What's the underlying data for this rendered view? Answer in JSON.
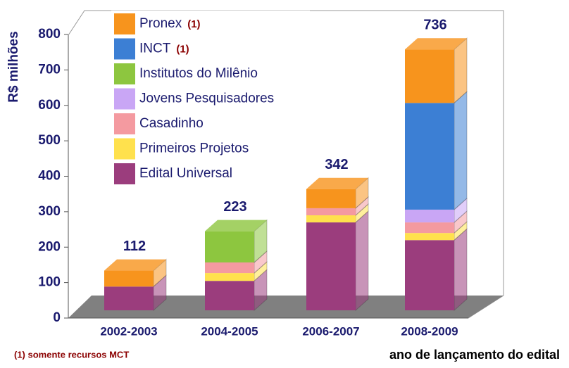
{
  "chart_data": {
    "type": "bar3d_stacked",
    "y_label": "R$ milhões",
    "x_label": "ano de lançamento do edital",
    "footnote": "(1)  somente recursos MCT",
    "categories": [
      "2002-2003",
      "2004-2005",
      "2006-2007",
      "2008-2009"
    ],
    "totals": [
      112,
      223,
      342,
      736
    ],
    "ylim": [
      0,
      800
    ],
    "yticks": [
      0,
      100,
      200,
      300,
      400,
      500,
      600,
      700,
      800
    ],
    "series": [
      {
        "name": "Edital Universal",
        "color": "#9b3d7d",
        "values": [
          67,
          83,
          248,
          198
        ]
      },
      {
        "name": "Primeiros Projetos",
        "color": "#ffe14d",
        "values": [
          0,
          22,
          20,
          20
        ]
      },
      {
        "name": "Casadinho",
        "color": "#f49aa0",
        "values": [
          0,
          30,
          20,
          30
        ]
      },
      {
        "name": "Jovens Pesquisadores",
        "color": "#c9a6f5",
        "values": [
          0,
          0,
          0,
          36
        ]
      },
      {
        "name": "Institutos do Milênio",
        "color": "#8dc63f",
        "values": [
          0,
          88,
          0,
          0
        ]
      },
      {
        "name": "INCT",
        "note": "(1)",
        "color": "#3c7fd4",
        "values": [
          0,
          0,
          0,
          301
        ]
      },
      {
        "name": "Pronex",
        "note": "(1)",
        "color": "#f7941d",
        "values": [
          45,
          0,
          54,
          151
        ]
      }
    ]
  }
}
